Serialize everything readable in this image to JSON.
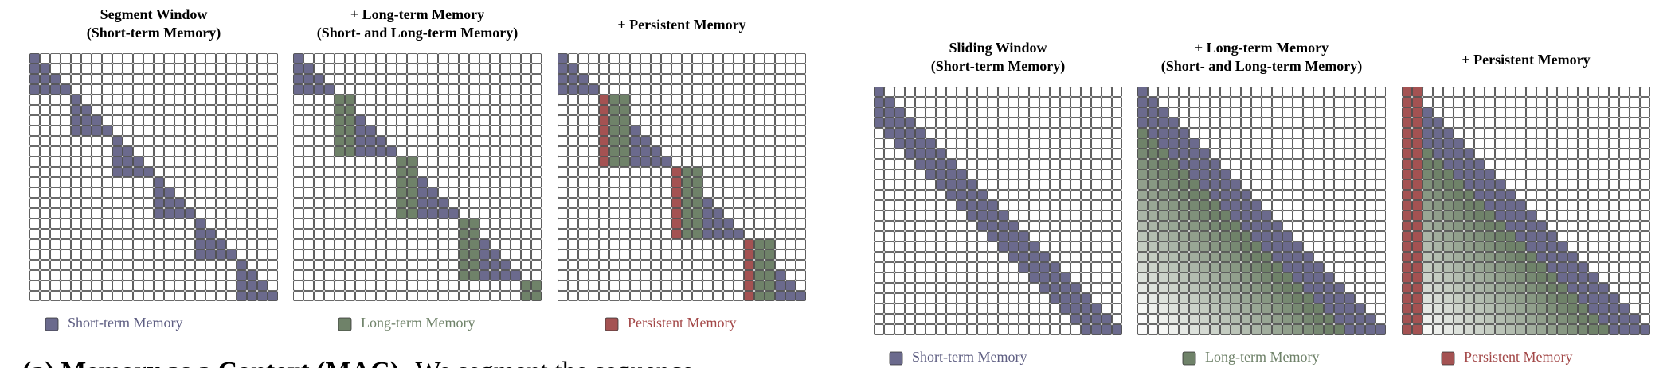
{
  "left_figure": {
    "panels": [
      {
        "title": [
          "Segment Window",
          "(Short-term Memory)"
        ]
      },
      {
        "title": [
          "+ Long-term Memory",
          "(Short- and Long-term Memory)"
        ]
      },
      {
        "title": [
          "+ Persistent Memory"
        ]
      }
    ],
    "legend": [
      "Short-term Memory",
      "Long-term Memory",
      "Persistent Memory"
    ]
  },
  "right_figure": {
    "panels": [
      {
        "title": [
          "Sliding Window",
          "(Short-term Memory)"
        ]
      },
      {
        "title": [
          "+ Long-term Memory",
          "(Short- and Long-term Memory)"
        ]
      },
      {
        "title": [
          "+ Persistent Memory"
        ]
      }
    ],
    "legend": [
      "Short-term Memory",
      "Long-term Memory",
      "Persistent Memory"
    ]
  },
  "caption": {
    "label": "(a) Memory as a Context (MAC).",
    "text": "We segment the sequence"
  }
}
